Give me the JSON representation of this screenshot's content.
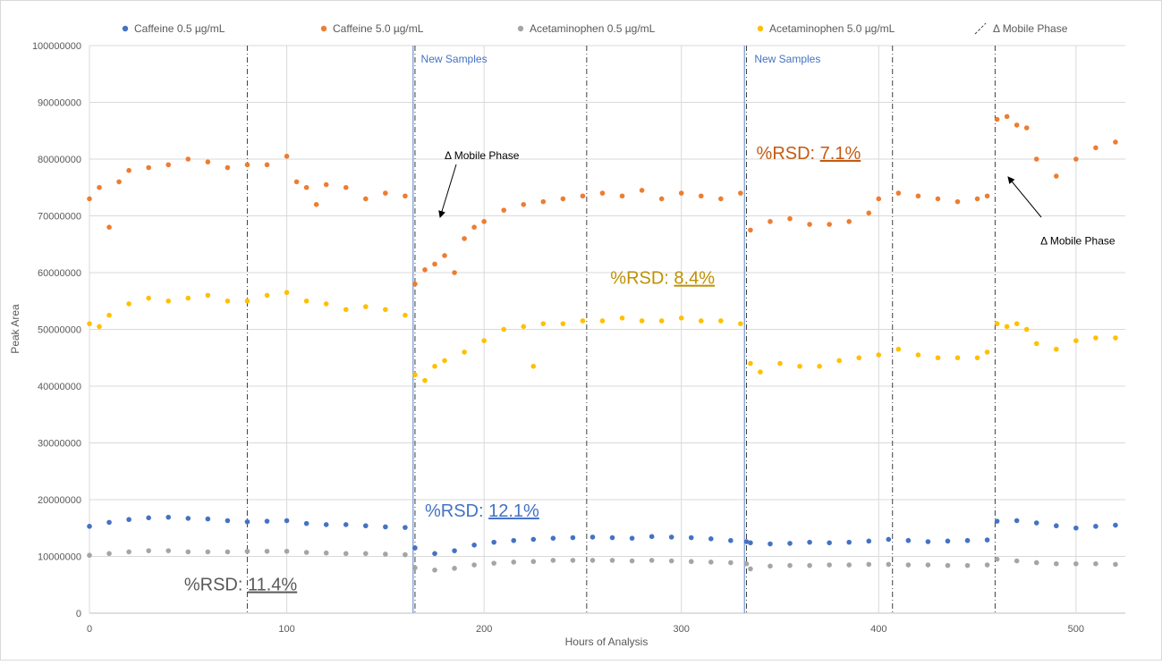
{
  "chart_data": {
    "type": "scatter",
    "xlabel": "Hours of Analysis",
    "ylabel": "Peak Area",
    "xlim": [
      0,
      525
    ],
    "ylim": [
      0,
      100000000
    ],
    "x_ticks": [
      "0",
      "100",
      "200",
      "300",
      "400",
      "500"
    ],
    "y_ticks": [
      "0",
      "10000000",
      "20000000",
      "30000000",
      "40000000",
      "50000000",
      "60000000",
      "70000000",
      "80000000",
      "90000000",
      "100000000"
    ],
    "grid": true,
    "legend_position": "top",
    "legend": [
      {
        "label": "Caffeine 0.5 µg/mL",
        "color": "#4472C4",
        "marker": "dot"
      },
      {
        "label": "Caffeine 5.0 µg/mL",
        "color": "#ED7D31",
        "marker": "dot"
      },
      {
        "label": "Acetaminophen 0.5 µg/mL",
        "color": "#A5A5A5",
        "marker": "dot"
      },
      {
        "label": "Acetaminophen 5.0 µg/mL",
        "color": "#FFC000",
        "marker": "dot"
      },
      {
        "label": "Δ Mobile Phase",
        "color": "#404040",
        "marker": "dash"
      }
    ],
    "series": [
      {
        "name": "Caffeine 0.5 µg/mL",
        "color": "#4472C4",
        "points": [
          [
            0,
            15300000
          ],
          [
            10,
            16000000
          ],
          [
            20,
            16500000
          ],
          [
            30,
            16800000
          ],
          [
            40,
            16900000
          ],
          [
            50,
            16700000
          ],
          [
            60,
            16600000
          ],
          [
            70,
            16300000
          ],
          [
            80,
            16100000
          ],
          [
            90,
            16200000
          ],
          [
            100,
            16300000
          ],
          [
            110,
            15800000
          ],
          [
            120,
            15600000
          ],
          [
            130,
            15600000
          ],
          [
            140,
            15400000
          ],
          [
            150,
            15200000
          ],
          [
            160,
            15100000
          ],
          [
            165,
            11500000
          ],
          [
            175,
            10500000
          ],
          [
            185,
            11000000
          ],
          [
            195,
            12000000
          ],
          [
            205,
            12500000
          ],
          [
            215,
            12800000
          ],
          [
            225,
            13000000
          ],
          [
            235,
            13200000
          ],
          [
            245,
            13300000
          ],
          [
            255,
            13400000
          ],
          [
            265,
            13300000
          ],
          [
            275,
            13200000
          ],
          [
            285,
            13500000
          ],
          [
            295,
            13400000
          ],
          [
            305,
            13300000
          ],
          [
            315,
            13100000
          ],
          [
            325,
            12800000
          ],
          [
            333,
            12600000
          ],
          [
            335,
            12400000
          ],
          [
            345,
            12200000
          ],
          [
            355,
            12300000
          ],
          [
            365,
            12500000
          ],
          [
            375,
            12400000
          ],
          [
            385,
            12500000
          ],
          [
            395,
            12700000
          ],
          [
            405,
            13000000
          ],
          [
            415,
            12800000
          ],
          [
            425,
            12600000
          ],
          [
            435,
            12700000
          ],
          [
            445,
            12800000
          ],
          [
            455,
            12900000
          ],
          [
            460,
            16200000
          ],
          [
            470,
            16300000
          ],
          [
            480,
            15900000
          ],
          [
            490,
            15400000
          ],
          [
            500,
            15000000
          ],
          [
            510,
            15300000
          ],
          [
            520,
            15500000
          ]
        ]
      },
      {
        "name": "Caffeine 5.0 µg/mL",
        "color": "#ED7D31",
        "points": [
          [
            0,
            73000000
          ],
          [
            5,
            75000000
          ],
          [
            10,
            68000000
          ],
          [
            15,
            76000000
          ],
          [
            20,
            78000000
          ],
          [
            30,
            78500000
          ],
          [
            40,
            79000000
          ],
          [
            50,
            80000000
          ],
          [
            60,
            79500000
          ],
          [
            70,
            78500000
          ],
          [
            80,
            79000000
          ],
          [
            90,
            79000000
          ],
          [
            100,
            80500000
          ],
          [
            105,
            76000000
          ],
          [
            110,
            75000000
          ],
          [
            115,
            72000000
          ],
          [
            120,
            75500000
          ],
          [
            130,
            75000000
          ],
          [
            140,
            73000000
          ],
          [
            150,
            74000000
          ],
          [
            160,
            73500000
          ],
          [
            165,
            58000000
          ],
          [
            170,
            60500000
          ],
          [
            175,
            61500000
          ],
          [
            180,
            63000000
          ],
          [
            185,
            60000000
          ],
          [
            190,
            66000000
          ],
          [
            195,
            68000000
          ],
          [
            200,
            69000000
          ],
          [
            210,
            71000000
          ],
          [
            220,
            72000000
          ],
          [
            230,
            72500000
          ],
          [
            240,
            73000000
          ],
          [
            250,
            73500000
          ],
          [
            260,
            74000000
          ],
          [
            270,
            73500000
          ],
          [
            280,
            74500000
          ],
          [
            290,
            73000000
          ],
          [
            300,
            74000000
          ],
          [
            310,
            73500000
          ],
          [
            320,
            73000000
          ],
          [
            330,
            74000000
          ],
          [
            335,
            67500000
          ],
          [
            345,
            69000000
          ],
          [
            355,
            69500000
          ],
          [
            365,
            68500000
          ],
          [
            375,
            68500000
          ],
          [
            385,
            69000000
          ],
          [
            395,
            70500000
          ],
          [
            400,
            73000000
          ],
          [
            410,
            74000000
          ],
          [
            420,
            73500000
          ],
          [
            430,
            73000000
          ],
          [
            440,
            72500000
          ],
          [
            450,
            73000000
          ],
          [
            455,
            73500000
          ],
          [
            460,
            87000000
          ],
          [
            465,
            87500000
          ],
          [
            470,
            86000000
          ],
          [
            475,
            85500000
          ],
          [
            480,
            80000000
          ],
          [
            490,
            77000000
          ],
          [
            500,
            80000000
          ],
          [
            510,
            82000000
          ],
          [
            520,
            83000000
          ]
        ]
      },
      {
        "name": "Acetaminophen 0.5 µg/mL",
        "color": "#A5A5A5",
        "points": [
          [
            0,
            10200000
          ],
          [
            10,
            10500000
          ],
          [
            20,
            10800000
          ],
          [
            30,
            11000000
          ],
          [
            40,
            11000000
          ],
          [
            50,
            10800000
          ],
          [
            60,
            10800000
          ],
          [
            70,
            10800000
          ],
          [
            80,
            10900000
          ],
          [
            90,
            10900000
          ],
          [
            100,
            10900000
          ],
          [
            110,
            10700000
          ],
          [
            120,
            10600000
          ],
          [
            130,
            10500000
          ],
          [
            140,
            10500000
          ],
          [
            150,
            10400000
          ],
          [
            160,
            10300000
          ],
          [
            165,
            8000000
          ],
          [
            175,
            7600000
          ],
          [
            185,
            7900000
          ],
          [
            195,
            8500000
          ],
          [
            205,
            8800000
          ],
          [
            215,
            9000000
          ],
          [
            225,
            9100000
          ],
          [
            235,
            9300000
          ],
          [
            245,
            9300000
          ],
          [
            255,
            9300000
          ],
          [
            265,
            9300000
          ],
          [
            275,
            9200000
          ],
          [
            285,
            9300000
          ],
          [
            295,
            9200000
          ],
          [
            305,
            9100000
          ],
          [
            315,
            9000000
          ],
          [
            325,
            8900000
          ],
          [
            333,
            8700000
          ],
          [
            335,
            7800000
          ],
          [
            345,
            8300000
          ],
          [
            355,
            8400000
          ],
          [
            365,
            8400000
          ],
          [
            375,
            8500000
          ],
          [
            385,
            8500000
          ],
          [
            395,
            8600000
          ],
          [
            405,
            8600000
          ],
          [
            415,
            8500000
          ],
          [
            425,
            8500000
          ],
          [
            435,
            8400000
          ],
          [
            445,
            8400000
          ],
          [
            455,
            8500000
          ],
          [
            460,
            9500000
          ],
          [
            470,
            9200000
          ],
          [
            480,
            8900000
          ],
          [
            490,
            8700000
          ],
          [
            500,
            8700000
          ],
          [
            510,
            8700000
          ],
          [
            520,
            8600000
          ]
        ]
      },
      {
        "name": "Acetaminophen 5.0 µg/mL",
        "color": "#FFC000",
        "points": [
          [
            0,
            51000000
          ],
          [
            5,
            50500000
          ],
          [
            10,
            52500000
          ],
          [
            20,
            54500000
          ],
          [
            30,
            55500000
          ],
          [
            40,
            55000000
          ],
          [
            50,
            55500000
          ],
          [
            60,
            56000000
          ],
          [
            70,
            55000000
          ],
          [
            80,
            55000000
          ],
          [
            90,
            56000000
          ],
          [
            100,
            56500000
          ],
          [
            110,
            55000000
          ],
          [
            120,
            54500000
          ],
          [
            130,
            53500000
          ],
          [
            140,
            54000000
          ],
          [
            150,
            53500000
          ],
          [
            160,
            52500000
          ],
          [
            165,
            42000000
          ],
          [
            170,
            41000000
          ],
          [
            175,
            43500000
          ],
          [
            180,
            44500000
          ],
          [
            190,
            46000000
          ],
          [
            200,
            48000000
          ],
          [
            210,
            50000000
          ],
          [
            220,
            50500000
          ],
          [
            225,
            43500000
          ],
          [
            230,
            51000000
          ],
          [
            240,
            51000000
          ],
          [
            250,
            51500000
          ],
          [
            260,
            51500000
          ],
          [
            270,
            52000000
          ],
          [
            280,
            51500000
          ],
          [
            290,
            51500000
          ],
          [
            300,
            52000000
          ],
          [
            310,
            51500000
          ],
          [
            320,
            51500000
          ],
          [
            330,
            51000000
          ],
          [
            335,
            44000000
          ],
          [
            340,
            42500000
          ],
          [
            350,
            44000000
          ],
          [
            360,
            43500000
          ],
          [
            370,
            43500000
          ],
          [
            380,
            44500000
          ],
          [
            390,
            45000000
          ],
          [
            400,
            45500000
          ],
          [
            410,
            46500000
          ],
          [
            420,
            45500000
          ],
          [
            430,
            45000000
          ],
          [
            440,
            45000000
          ],
          [
            450,
            45000000
          ],
          [
            455,
            46000000
          ],
          [
            460,
            51000000
          ],
          [
            465,
            50500000
          ],
          [
            470,
            51000000
          ],
          [
            475,
            50000000
          ],
          [
            480,
            47500000
          ],
          [
            490,
            46500000
          ],
          [
            500,
            48000000
          ],
          [
            510,
            48500000
          ],
          [
            520,
            48500000
          ]
        ]
      }
    ],
    "mobile_phase_changes_x": [
      80,
      165,
      252,
      333,
      407,
      459
    ],
    "new_sample_lines_x": [
      164,
      332
    ],
    "annotations": [
      {
        "text_prefix": "%RSD: ",
        "value": "7.1%",
        "x": 338,
        "y": 80000000,
        "color": "#C55A11"
      },
      {
        "text_prefix": "%RSD: ",
        "value": "8.4%",
        "x": 264,
        "y": 58000000,
        "color": "#BF9000"
      },
      {
        "text_prefix": "%RSD: ",
        "value": "12.1%",
        "x": 170,
        "y": 17000000,
        "color": "#4472C4"
      },
      {
        "text_prefix": "%RSD: ",
        "value": "11.4%",
        "x": 48,
        "y": 4000000,
        "color": "#595959"
      },
      {
        "text": "New Samples",
        "x": 168,
        "y": 97000000,
        "color": "#4472C4"
      },
      {
        "text": "New Samples",
        "x": 337,
        "y": 97000000,
        "color": "#4472C4"
      },
      {
        "text": "Δ Mobile Phase",
        "x": 180,
        "y": 80000000,
        "color": "#000000"
      },
      {
        "text": "Δ Mobile Phase",
        "x": 482,
        "y": 65000000,
        "color": "#000000"
      }
    ]
  }
}
